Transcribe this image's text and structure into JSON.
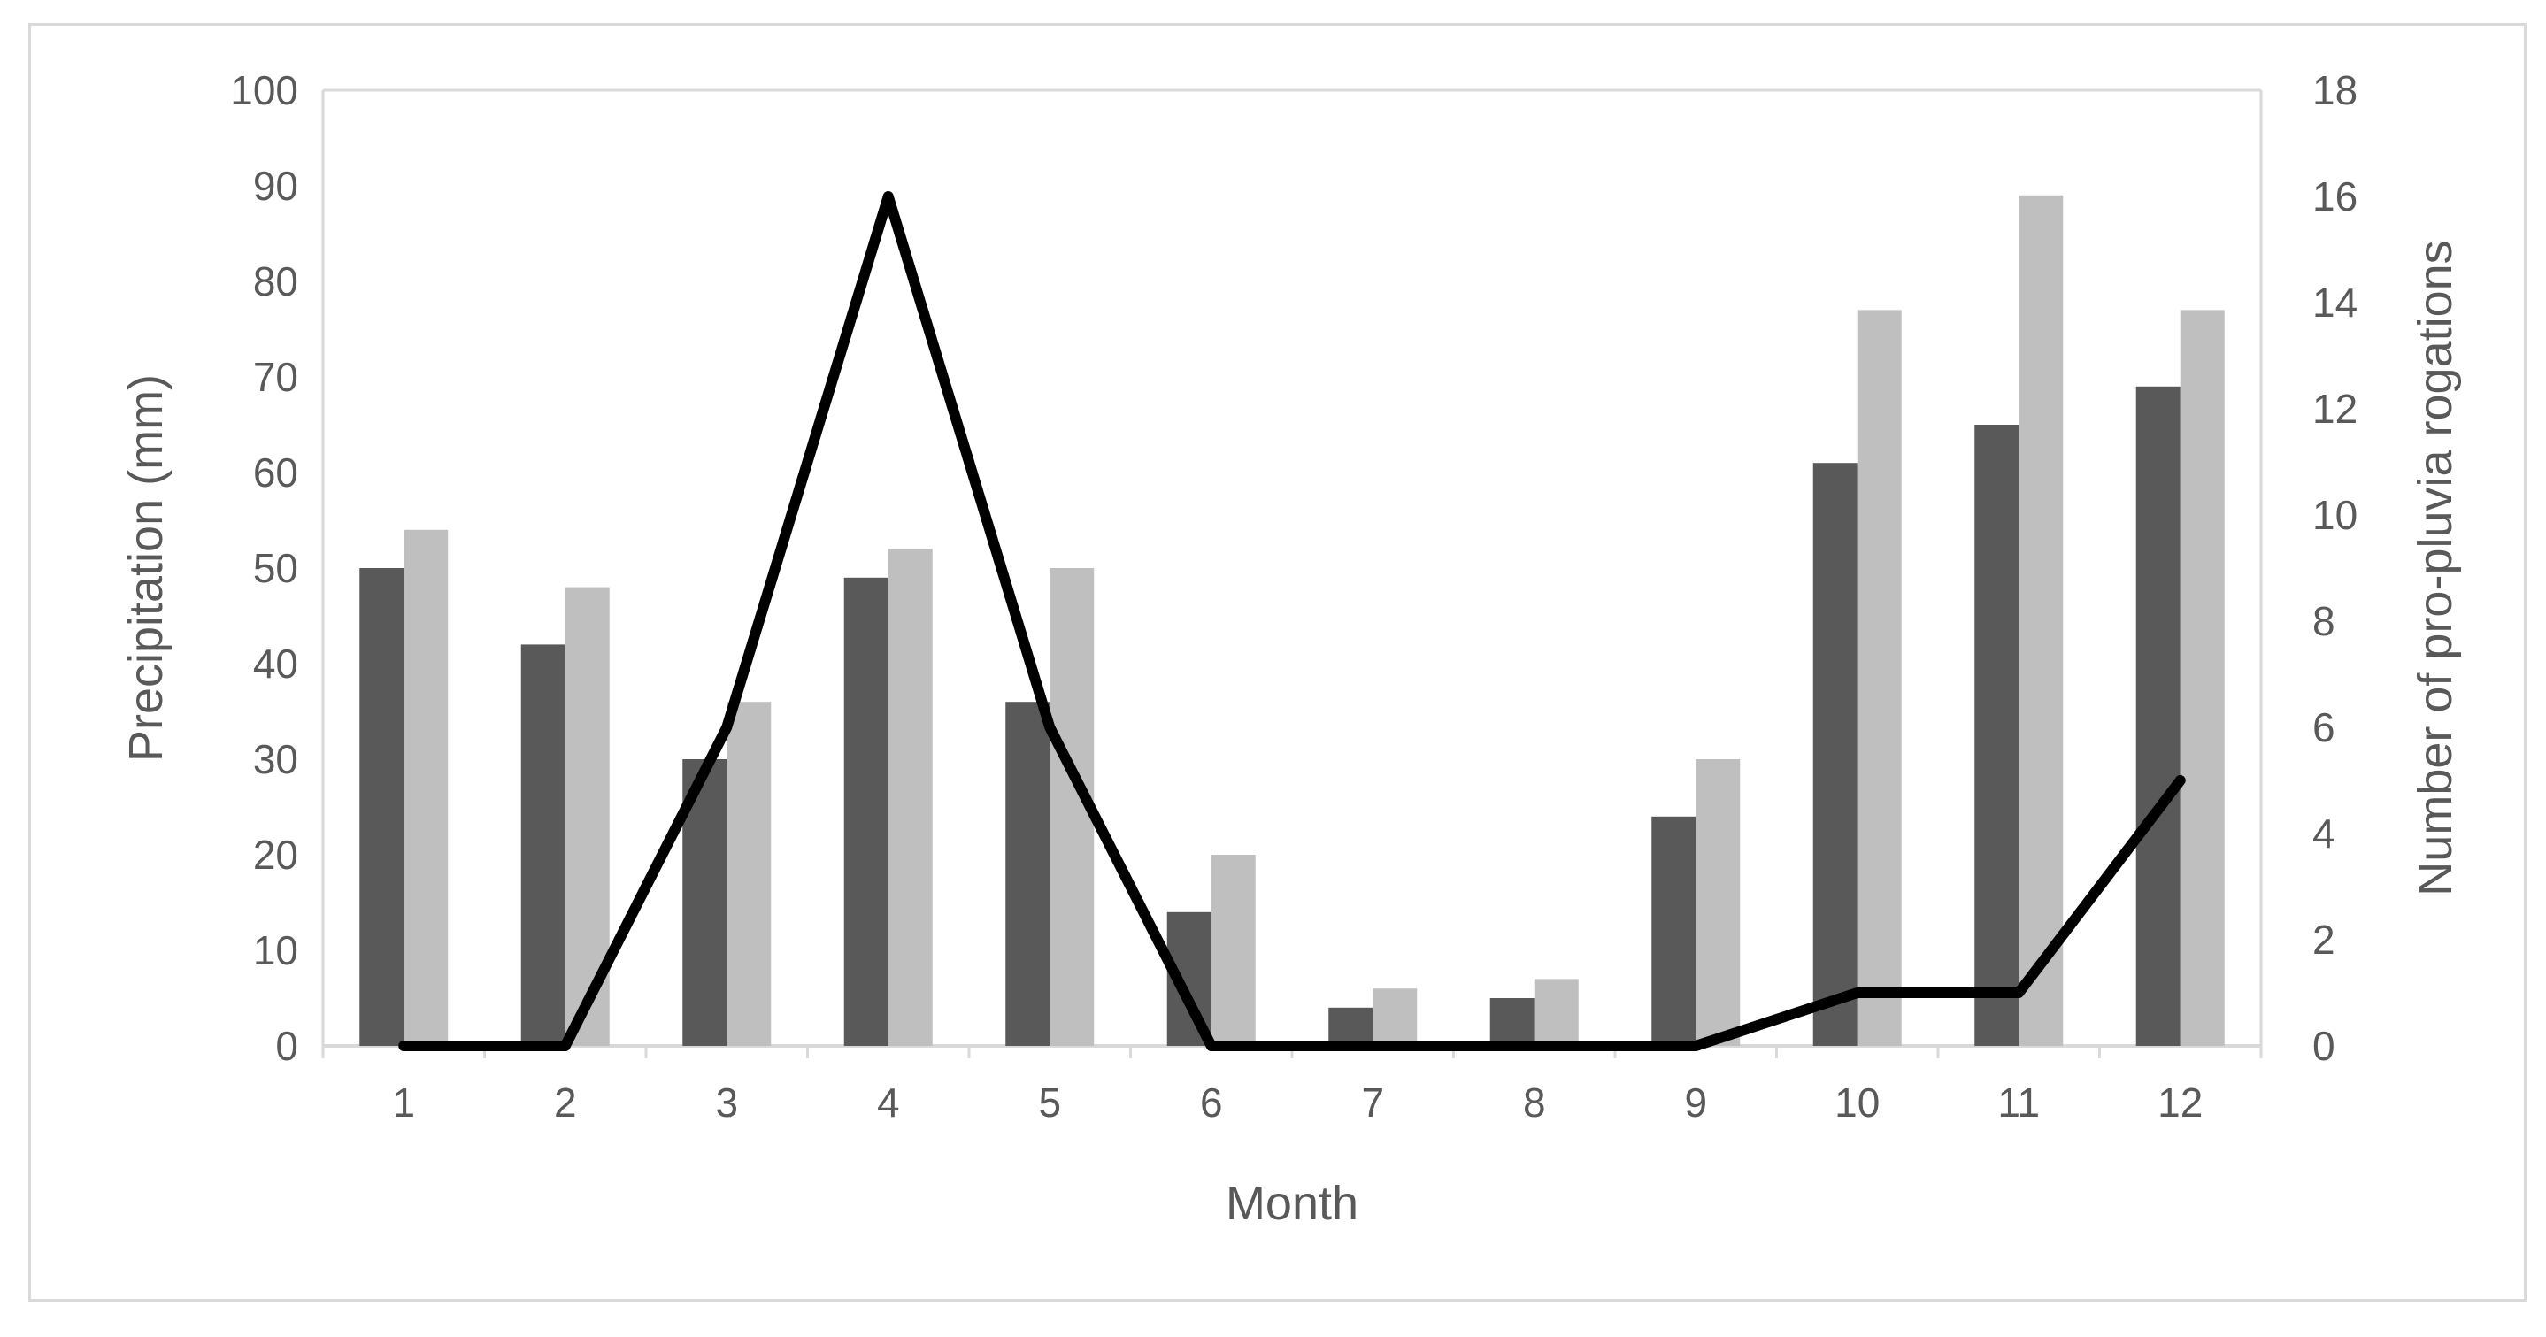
{
  "chart_data": {
    "type": "bar",
    "title": "",
    "categories": [
      "1",
      "2",
      "3",
      "4",
      "5",
      "6",
      "7",
      "8",
      "9",
      "10",
      "11",
      "12"
    ],
    "xlabel": "Month",
    "ylabel": "Precipitation (mm)",
    "y2label": "Number of pro-pluvia rogations",
    "ylim": [
      0,
      100
    ],
    "yticks": [
      "0",
      "10",
      "20",
      "30",
      "40",
      "50",
      "60",
      "70",
      "80",
      "90",
      "100"
    ],
    "y2lim": [
      0,
      18
    ],
    "y2ticks": [
      "0",
      "2",
      "4",
      "6",
      "8",
      "10",
      "12",
      "14",
      "16",
      "18"
    ],
    "grid": false,
    "legend": "none",
    "series": [
      {
        "type": "bar",
        "axis": "left",
        "color": "#595959",
        "values": [
          50,
          42,
          30,
          49,
          36,
          14,
          4,
          5,
          24,
          61,
          65,
          69
        ]
      },
      {
        "type": "bar",
        "axis": "left",
        "color": "#bfbfbf",
        "values": [
          54,
          48,
          36,
          52,
          50,
          20,
          6,
          7,
          30,
          77,
          89,
          77
        ]
      },
      {
        "type": "line",
        "axis": "right",
        "color": "#000000",
        "values": [
          0,
          0,
          6,
          16,
          6,
          0,
          0,
          0,
          0,
          1,
          1,
          5
        ]
      }
    ]
  }
}
